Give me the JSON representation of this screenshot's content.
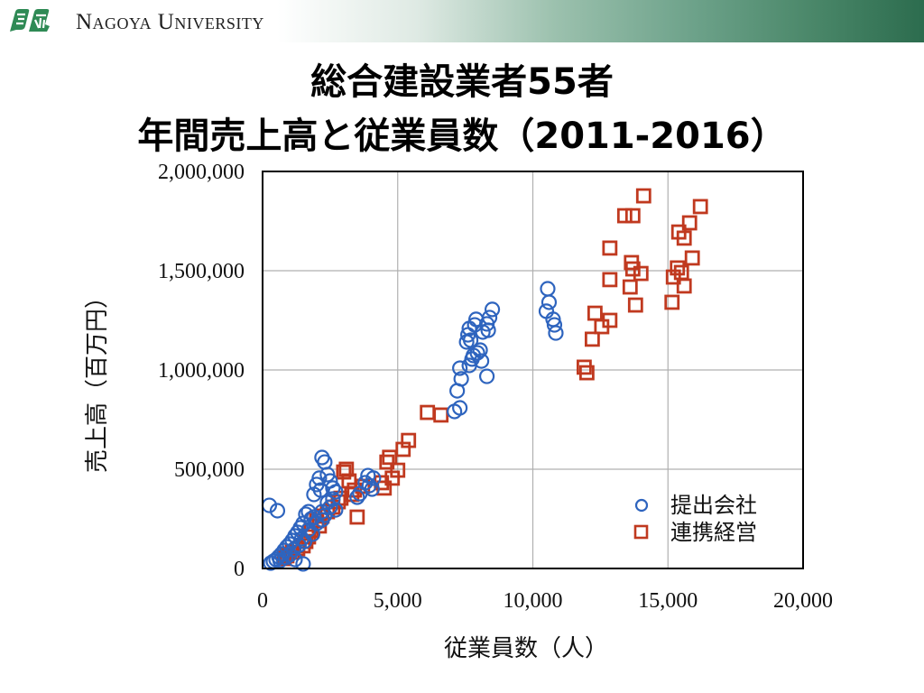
{
  "header": {
    "logo_icon": "nagoya-university-logo",
    "university_name": "Nagoya University",
    "gradient_colors": [
      "#ffffff",
      "#9cc1ae",
      "#2c6c4e"
    ]
  },
  "title": {
    "line1": "総合建設業者55者",
    "line2": "年間売上高と従業員数（2011-2016）"
  },
  "colors": {
    "series1": "#2e64be",
    "series2": "#c0391f",
    "grid": "#b0b0b0",
    "axis": "#000000"
  },
  "chart_data": {
    "type": "scatter",
    "title": "総合建設業者55者 年間売上高と従業員数（2011-2016）",
    "xlabel": "従業員数（人）",
    "ylabel": "売上高（百万円）",
    "xlim": [
      0,
      20000
    ],
    "ylim": [
      0,
      2000000
    ],
    "x_ticks": [
      0,
      5000,
      10000,
      15000,
      20000
    ],
    "x_tick_labels": [
      "0",
      "5,000",
      "10,000",
      "15,000",
      "20,000"
    ],
    "y_ticks": [
      0,
      500000,
      1000000,
      1500000,
      2000000
    ],
    "y_tick_labels": [
      "0",
      "500,000",
      "1,000,000",
      "1,500,000",
      "2,000,000"
    ],
    "grid": true,
    "legend_position": "lower right",
    "series": [
      {
        "name": "提出会社",
        "marker": "circle",
        "points": [
          [
            10550,
            1409000
          ],
          [
            10600,
            1341000
          ],
          [
            10500,
            1296000
          ],
          [
            10750,
            1255000
          ],
          [
            10800,
            1227000
          ],
          [
            10850,
            1186000
          ],
          [
            8500,
            1305000
          ],
          [
            8400,
            1264000
          ],
          [
            8300,
            1232000
          ],
          [
            8350,
            1200000
          ],
          [
            8150,
            1191000
          ],
          [
            7900,
            1255000
          ],
          [
            7850,
            1227000
          ],
          [
            7650,
            1209000
          ],
          [
            7600,
            1177000
          ],
          [
            7700,
            1150000
          ],
          [
            7550,
            1141000
          ],
          [
            8050,
            1100000
          ],
          [
            7950,
            1086000
          ],
          [
            7800,
            1073000
          ],
          [
            7750,
            1055000
          ],
          [
            8100,
            1045000
          ],
          [
            7650,
            1023000
          ],
          [
            7300,
            1009000
          ],
          [
            7350,
            955000
          ],
          [
            8300,
            968000
          ],
          [
            7200,
            895000
          ],
          [
            7300,
            809000
          ],
          [
            7100,
            791000
          ],
          [
            2200,
            559000
          ],
          [
            2300,
            536000
          ],
          [
            2400,
            473000
          ],
          [
            2100,
            455000
          ],
          [
            2000,
            423000
          ],
          [
            2150,
            395000
          ],
          [
            1900,
            373000
          ],
          [
            2500,
            441000
          ],
          [
            2600,
            405000
          ],
          [
            2700,
            386000
          ],
          [
            3900,
            468000
          ],
          [
            4100,
            455000
          ],
          [
            3800,
            432000
          ],
          [
            3950,
            418000
          ],
          [
            4050,
            400000
          ],
          [
            3600,
            377000
          ],
          [
            3500,
            359000
          ],
          [
            2600,
            350000
          ],
          [
            2400,
            332000
          ],
          [
            2500,
            309000
          ],
          [
            2700,
            295000
          ],
          [
            2200,
            286000
          ],
          [
            2300,
            268000
          ],
          [
            1900,
            259000
          ],
          [
            1700,
            286000
          ],
          [
            1600,
            273000
          ],
          [
            1800,
            250000
          ],
          [
            1500,
            227000
          ],
          [
            1400,
            205000
          ],
          [
            1300,
            182000
          ],
          [
            1200,
            164000
          ],
          [
            1100,
            141000
          ],
          [
            1000,
            123000
          ],
          [
            900,
            109000
          ],
          [
            800,
            91000
          ],
          [
            700,
            73000
          ],
          [
            600,
            59000
          ],
          [
            500,
            45000
          ],
          [
            400,
            36000
          ],
          [
            300,
            27000
          ],
          [
            1500,
            23000
          ],
          [
            1200,
            45000
          ],
          [
            1000,
            68000
          ],
          [
            250,
            318000
          ],
          [
            550,
            291000
          ],
          [
            1700,
            195000
          ],
          [
            2000,
            227000
          ],
          [
            2200,
            245000
          ],
          [
            1450,
            150000
          ],
          [
            1150,
            95000
          ],
          [
            850,
            55000
          ],
          [
            650,
            40000
          ],
          [
            1350,
            118000
          ],
          [
            1550,
            136000
          ],
          [
            1850,
            173000
          ]
        ]
      },
      {
        "name": "連携経営",
        "marker": "square",
        "points": [
          [
            14100,
            1877000
          ],
          [
            13400,
            1777000
          ],
          [
            13700,
            1777000
          ],
          [
            16200,
            1823000
          ],
          [
            15800,
            1741000
          ],
          [
            12850,
            1614000
          ],
          [
            15400,
            1695000
          ],
          [
            15600,
            1664000
          ],
          [
            15900,
            1564000
          ],
          [
            13650,
            1541000
          ],
          [
            15350,
            1514000
          ],
          [
            13700,
            1509000
          ],
          [
            15500,
            1491000
          ],
          [
            14000,
            1486000
          ],
          [
            15200,
            1468000
          ],
          [
            12850,
            1455000
          ],
          [
            15600,
            1423000
          ],
          [
            13600,
            1418000
          ],
          [
            15150,
            1341000
          ],
          [
            13800,
            1327000
          ],
          [
            12300,
            1286000
          ],
          [
            12850,
            1250000
          ],
          [
            12550,
            1218000
          ],
          [
            12200,
            1155000
          ],
          [
            11900,
            1014000
          ],
          [
            12000,
            986000
          ],
          [
            6100,
            786000
          ],
          [
            6600,
            773000
          ],
          [
            5400,
            645000
          ],
          [
            5200,
            600000
          ],
          [
            4700,
            560000
          ],
          [
            4600,
            536000
          ],
          [
            5000,
            495000
          ],
          [
            4800,
            455000
          ],
          [
            4400,
            432000
          ],
          [
            4500,
            405000
          ],
          [
            3100,
            500000
          ],
          [
            3000,
            486000
          ],
          [
            3200,
            441000
          ],
          [
            3700,
            414000
          ],
          [
            3400,
            395000
          ],
          [
            3300,
            373000
          ],
          [
            2900,
            354000
          ],
          [
            3500,
            259000
          ],
          [
            2800,
            336000
          ],
          [
            2600,
            309000
          ],
          [
            2400,
            286000
          ],
          [
            2200,
            264000
          ],
          [
            2000,
            241000
          ],
          [
            2100,
            214000
          ],
          [
            1800,
            191000
          ],
          [
            1700,
            159000
          ],
          [
            1600,
            136000
          ],
          [
            1500,
            114000
          ],
          [
            1300,
            100000
          ],
          [
            1100,
            82000
          ],
          [
            900,
            64000
          ],
          [
            800,
            50000
          ]
        ]
      }
    ]
  },
  "legend": {
    "items": [
      {
        "label": "提出会社",
        "marker": "circle"
      },
      {
        "label": "連携経営",
        "marker": "square"
      }
    ]
  }
}
